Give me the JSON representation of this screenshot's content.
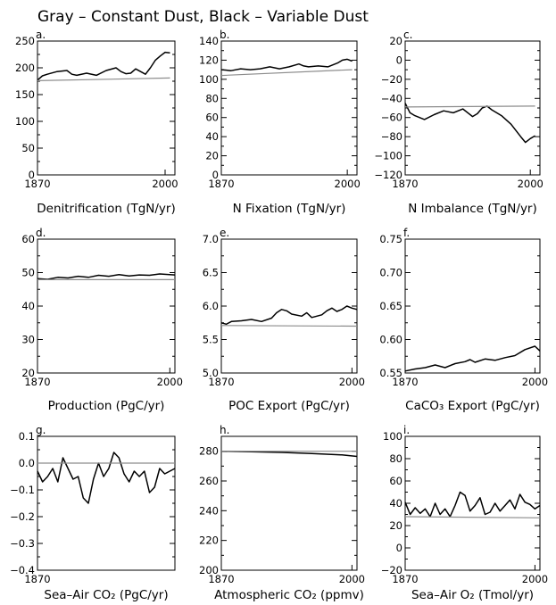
{
  "figure_title": "Gray – Constant Dust, Black – Variable Dust",
  "colors": {
    "variable": "#000000",
    "constant": "#8c8c8c",
    "axis": "#000000",
    "minor_tick": "#9a9a9a"
  },
  "chart_data": [
    {
      "panel": "a.",
      "type": "line",
      "ylabel": "Denitrification (TgN/yr)",
      "ylim": [
        0,
        250
      ],
      "yticks": [
        0,
        50,
        100,
        150,
        200,
        250
      ],
      "xlim": [
        1870,
        2010
      ],
      "xticks": [
        1870,
        2000
      ],
      "series": [
        {
          "color": "#000000",
          "x": [
            1870,
            1875,
            1880,
            1890,
            1900,
            1905,
            1910,
            1920,
            1930,
            1940,
            1950,
            1955,
            1960,
            1965,
            1970,
            1975,
            1980,
            1985,
            1990,
            1995,
            2000,
            2005
          ],
          "y": [
            177,
            185,
            188,
            193,
            195,
            188,
            186,
            190,
            186,
            195,
            200,
            193,
            189,
            190,
            198,
            193,
            188,
            200,
            214,
            222,
            229,
            228
          ]
        },
        {
          "color": "#8c8c8c",
          "x": [
            1870,
            2005
          ],
          "y": [
            176,
            181
          ]
        }
      ]
    },
    {
      "panel": "b.",
      "type": "line",
      "ylabel": "N Fixation (TgN/yr)",
      "ylim": [
        0,
        140
      ],
      "yticks": [
        0,
        20,
        40,
        60,
        80,
        100,
        120,
        140
      ],
      "xlim": [
        1870,
        2010
      ],
      "xticks": [
        1870,
        2000
      ],
      "series": [
        {
          "color": "#000000",
          "x": [
            1870,
            1880,
            1890,
            1900,
            1910,
            1920,
            1930,
            1940,
            1950,
            1955,
            1960,
            1970,
            1980,
            1990,
            1995,
            2000,
            2005
          ],
          "y": [
            110,
            109,
            111,
            110,
            111,
            113,
            111,
            113,
            116,
            114,
            113,
            114,
            113,
            117,
            120,
            121,
            119
          ]
        },
        {
          "color": "#8c8c8c",
          "x": [
            1870,
            2005
          ],
          "y": [
            104,
            110
          ]
        }
      ]
    },
    {
      "panel": "c.",
      "type": "line",
      "ylabel": "N Imbalance (TgN/yr)",
      "ylim": [
        -120,
        20
      ],
      "yticks": [
        -120,
        -100,
        -80,
        -60,
        -40,
        -20,
        0,
        20
      ],
      "xlim": [
        1870,
        2010
      ],
      "xticks": [
        1870,
        2000
      ],
      "series": [
        {
          "color": "#000000",
          "x": [
            1870,
            1875,
            1880,
            1890,
            1900,
            1910,
            1920,
            1930,
            1940,
            1945,
            1950,
            1955,
            1960,
            1970,
            1980,
            1990,
            1995,
            2000,
            2005
          ],
          "y": [
            -45,
            -55,
            -58,
            -62,
            -57,
            -53,
            -55,
            -51,
            -59,
            -56,
            -50,
            -48,
            -52,
            -58,
            -67,
            -80,
            -86,
            -82,
            -79
          ]
        },
        {
          "color": "#8c8c8c",
          "x": [
            1870,
            2005
          ],
          "y": [
            -49,
            -48
          ]
        }
      ]
    },
    {
      "panel": "d.",
      "type": "line",
      "ylabel": "Production (PgC/yr)",
      "ylim": [
        20,
        60
      ],
      "yticks": [
        20,
        30,
        40,
        50,
        60
      ],
      "xlim": [
        1870,
        2005
      ],
      "xticks": [
        1870,
        2000
      ],
      "series": [
        {
          "color": "#000000",
          "x": [
            1870,
            1880,
            1890,
            1900,
            1910,
            1920,
            1930,
            1940,
            1950,
            1960,
            1970,
            1980,
            1990,
            2000,
            2005
          ],
          "y": [
            48.2,
            48.0,
            48.6,
            48.4,
            48.9,
            48.6,
            49.2,
            48.9,
            49.4,
            49.0,
            49.3,
            49.2,
            49.6,
            49.4,
            49.3
          ]
        },
        {
          "color": "#8c8c8c",
          "x": [
            1870,
            2005
          ],
          "y": [
            47.9,
            47.9
          ]
        }
      ]
    },
    {
      "panel": "e.",
      "type": "line",
      "ylabel": "POC Export (PgC/yr)",
      "ylim": [
        5.0,
        7.0
      ],
      "yticks": [
        5.0,
        5.5,
        6.0,
        6.5,
        7.0
      ],
      "xlim": [
        1870,
        2005
      ],
      "xticks": [
        1870,
        2000
      ],
      "series": [
        {
          "color": "#000000",
          "x": [
            1870,
            1875,
            1880,
            1890,
            1900,
            1910,
            1920,
            1925,
            1930,
            1935,
            1940,
            1950,
            1955,
            1960,
            1970,
            1975,
            1980,
            1985,
            1990,
            1995,
            2000,
            2005
          ],
          "y": [
            5.75,
            5.73,
            5.77,
            5.78,
            5.8,
            5.77,
            5.82,
            5.9,
            5.95,
            5.93,
            5.88,
            5.85,
            5.9,
            5.83,
            5.87,
            5.93,
            5.97,
            5.92,
            5.95,
            6.0,
            5.97,
            5.95
          ]
        },
        {
          "color": "#8c8c8c",
          "x": [
            1870,
            2005
          ],
          "y": [
            5.71,
            5.7
          ]
        }
      ]
    },
    {
      "panel": "f.",
      "type": "line",
      "ylabel": "CaCO₃ Export (PgC/yr)",
      "ylim": [
        0.55,
        0.75
      ],
      "yticks": [
        0.55,
        0.6,
        0.65,
        0.7,
        0.75
      ],
      "xlim": [
        1870,
        2005
      ],
      "xticks": [
        1870,
        2000
      ],
      "series": [
        {
          "color": "#000000",
          "x": [
            1870,
            1880,
            1890,
            1900,
            1910,
            1920,
            1930,
            1935,
            1940,
            1950,
            1960,
            1970,
            1980,
            1990,
            2000,
            2005
          ],
          "y": [
            0.553,
            0.556,
            0.558,
            0.562,
            0.558,
            0.564,
            0.567,
            0.57,
            0.566,
            0.571,
            0.569,
            0.573,
            0.576,
            0.585,
            0.59,
            0.583
          ]
        }
      ]
    },
    {
      "panel": "g.",
      "type": "line",
      "ylabel": "Sea–Air CO₂ (PgC/yr)",
      "ylim": [
        -0.4,
        0.1
      ],
      "yticks": [
        -0.4,
        -0.3,
        -0.2,
        -0.1,
        0.0,
        0.1
      ],
      "xlim": [
        1870,
        2005
      ],
      "xticks": [
        1870
      ],
      "series": [
        {
          "color": "#000000",
          "x": [
            1870,
            1875,
            1880,
            1885,
            1890,
            1895,
            1900,
            1905,
            1910,
            1915,
            1920,
            1925,
            1930,
            1935,
            1940,
            1945,
            1950,
            1955,
            1960,
            1965,
            1970,
            1975,
            1980,
            1985,
            1990,
            1995,
            2000,
            2005
          ],
          "y": [
            -0.03,
            -0.07,
            -0.05,
            -0.02,
            -0.07,
            0.02,
            -0.02,
            -0.06,
            -0.05,
            -0.13,
            -0.15,
            -0.06,
            0.0,
            -0.05,
            -0.02,
            0.04,
            0.02,
            -0.04,
            -0.07,
            -0.03,
            -0.05,
            -0.03,
            -0.11,
            -0.09,
            -0.02,
            -0.04,
            -0.03,
            -0.02
          ]
        },
        {
          "color": "#8c8c8c",
          "x": [
            1870,
            2005
          ],
          "y": [
            0.0,
            0.0
          ]
        }
      ]
    },
    {
      "panel": "h.",
      "type": "line",
      "ylabel": "Atmospheric CO₂ (ppmv)",
      "ylim": [
        200,
        290
      ],
      "yticks": [
        200,
        220,
        240,
        260,
        280
      ],
      "xlim": [
        1870,
        2005
      ],
      "xticks": [
        1870,
        2000
      ],
      "series": [
        {
          "color": "#000000",
          "x": [
            1870,
            1900,
            1930,
            1960,
            1990,
            2005
          ],
          "y": [
            280,
            279.6,
            279.2,
            278.5,
            277.5,
            276.5
          ]
        },
        {
          "color": "#8c8c8c",
          "x": [
            1870,
            2005
          ],
          "y": [
            280,
            280
          ]
        }
      ]
    },
    {
      "panel": "i.",
      "type": "line",
      "ylabel": "Sea–Air O₂ (Tmol/yr)",
      "ylim": [
        -20,
        100
      ],
      "yticks": [
        -20,
        0,
        20,
        40,
        60,
        80,
        100
      ],
      "xlim": [
        1870,
        2005
      ],
      "xticks": [
        1870,
        2000
      ],
      "series": [
        {
          "color": "#000000",
          "x": [
            1870,
            1875,
            1880,
            1885,
            1890,
            1895,
            1900,
            1905,
            1910,
            1915,
            1920,
            1925,
            1930,
            1935,
            1940,
            1945,
            1950,
            1955,
            1960,
            1965,
            1970,
            1975,
            1980,
            1985,
            1990,
            1995,
            2000,
            2005
          ],
          "y": [
            41,
            30,
            36,
            31,
            35,
            28,
            40,
            30,
            35,
            28,
            38,
            50,
            47,
            33,
            38,
            45,
            30,
            32,
            40,
            33,
            38,
            43,
            35,
            48,
            41,
            39,
            35,
            38
          ]
        },
        {
          "color": "#8c8c8c",
          "x": [
            1870,
            2005
          ],
          "y": [
            28,
            27
          ]
        }
      ]
    }
  ]
}
